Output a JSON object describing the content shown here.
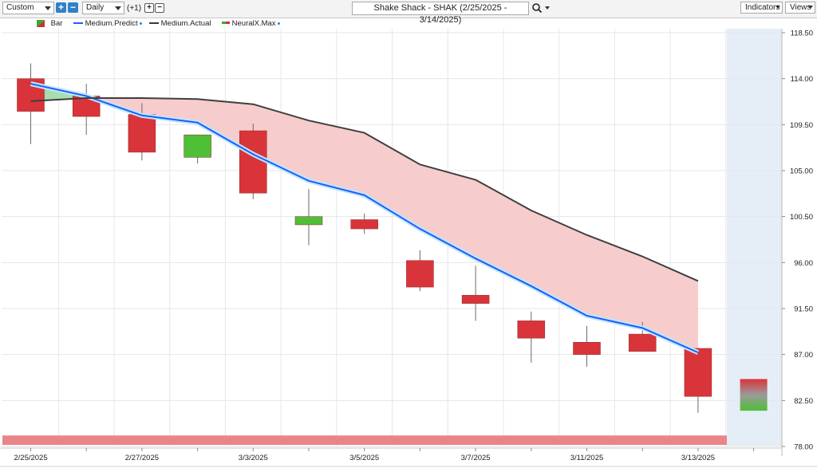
{
  "toolbar": {
    "period_select": "Custom",
    "interval_select": "Daily",
    "offset_label": "(+1)",
    "plus_icon": "plus-icon",
    "minus_icon": "minus-icon",
    "title": "Shake Shack - SHAK (2/25/2025 - 3/14/2025)",
    "search_icon": "magnifier-icon",
    "indicators_label": "Indicators",
    "views_label": "Views"
  },
  "legend": [
    {
      "label": "Bar",
      "icon": "bar-swatch-icon",
      "color": "#2fae2f"
    },
    {
      "label": "Medium.Predict",
      "icon": "line-swatch-icon",
      "color": "#1c5ef7"
    },
    {
      "label": "Medium.Actual",
      "icon": "line-swatch-icon",
      "color": "#3a3a3a"
    },
    {
      "label": "NeuralX.Max",
      "icon": "bar-swatch-icon",
      "color": "#d62f2f"
    }
  ],
  "colors": {
    "up": "#4fbf36",
    "down": "#d9343a",
    "predict": "#1c5ef7",
    "actual": "#3f3f3f",
    "fill_between": "#f6c6c6",
    "fill_between_up": "#a8ddb0",
    "forecast_bg": "#e5edf7",
    "bottom_band": "#e98589",
    "grid": "#e6e6e6"
  },
  "chart_data": {
    "type": "candlestick",
    "title": "Shake Shack - SHAK (2/25/2025 - 3/14/2025)",
    "ylim": [
      78.0,
      118.5
    ],
    "y_ticks": [
      "118.50",
      "114.00",
      "109.50",
      "105.00",
      "100.50",
      "96.00",
      "91.50",
      "87.00",
      "82.50",
      "78.00"
    ],
    "x_tick_labels": [
      "2/25/2025",
      "2/27/2025",
      "3/3/2025",
      "3/5/2025",
      "3/7/2025",
      "3/11/2025",
      "3/13/2025"
    ],
    "x_tick_label_indices": [
      0,
      2,
      4,
      6,
      8,
      10,
      12
    ],
    "grid": true,
    "legend_position": "top-left",
    "candles": [
      {
        "open": 114.0,
        "high": 115.5,
        "low": 107.6,
        "close": 110.8
      },
      {
        "open": 112.3,
        "high": 113.5,
        "low": 108.5,
        "close": 110.3
      },
      {
        "open": 110.5,
        "high": 111.6,
        "low": 106.0,
        "close": 106.8
      },
      {
        "open": 106.3,
        "high": 108.5,
        "low": 105.7,
        "close": 108.5
      },
      {
        "open": 108.9,
        "high": 109.6,
        "low": 102.2,
        "close": 102.8
      },
      {
        "open": 99.7,
        "high": 103.2,
        "low": 97.7,
        "close": 100.5
      },
      {
        "open": 100.2,
        "high": 100.8,
        "low": 98.8,
        "close": 99.3
      },
      {
        "open": 96.2,
        "high": 97.2,
        "low": 93.2,
        "close": 93.6
      },
      {
        "open": 92.8,
        "high": 95.7,
        "low": 90.3,
        "close": 92.0
      },
      {
        "open": 90.3,
        "high": 91.2,
        "low": 86.2,
        "close": 88.6
      },
      {
        "open": 88.2,
        "high": 89.8,
        "low": 85.8,
        "close": 87.0
      },
      {
        "open": 89.0,
        "high": 90.2,
        "low": 87.3,
        "close": 87.3
      },
      {
        "open": 87.6,
        "high": 87.6,
        "low": 81.3,
        "close": 82.9
      }
    ],
    "series": [
      {
        "name": "Medium.Predict",
        "values": [
          113.5,
          112.3,
          110.4,
          109.7,
          106.6,
          104.0,
          102.6,
          99.3,
          96.4,
          93.7,
          90.8,
          89.6,
          87.2
        ]
      },
      {
        "name": "Medium.Actual",
        "values": [
          111.8,
          112.1,
          112.1,
          112.0,
          111.5,
          109.9,
          108.7,
          105.6,
          104.1,
          101.1,
          98.7,
          96.6,
          94.2
        ]
      }
    ],
    "forecast": {
      "index": 13,
      "top": 84.6,
      "bottom": 81.5,
      "color_top": "#d9343a",
      "color_bottom": "#4fbf36"
    },
    "bottom_band_range": [
      78.0,
      79.0
    ]
  }
}
